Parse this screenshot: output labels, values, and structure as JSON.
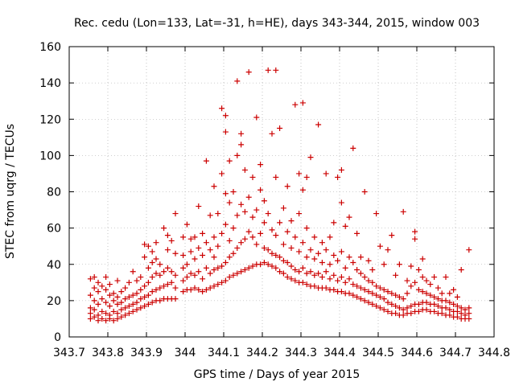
{
  "chart_data": {
    "type": "scatter",
    "title": "Rec. cedu (Lon=133, Lat=-31, h=HE), days 343-344, 2015, window 003",
    "xlabel": "GPS time / Days of year 2015",
    "ylabel": "STEC from uqrg / TECUs",
    "xlim": [
      343.7,
      344.8
    ],
    "ylim": [
      0,
      160
    ],
    "xticks": [
      343.7,
      343.8,
      343.9,
      344.0,
      344.1,
      344.2,
      344.3,
      344.4,
      344.5,
      344.6,
      344.7,
      344.8
    ],
    "xtick_labels": [
      "343.7",
      "343.8",
      "343.9",
      "344",
      "344.1",
      "344.2",
      "344.3",
      "344.4",
      "344.5",
      "344.6",
      "344.7",
      "344.8"
    ],
    "yticks": [
      0,
      20,
      40,
      60,
      80,
      100,
      120,
      140,
      160
    ],
    "ytick_labels": [
      "0",
      "20",
      "40",
      "60",
      "80",
      "100",
      "120",
      "140",
      "160"
    ],
    "grid": true,
    "legend": "none",
    "marker": "+",
    "color": "#cc0000",
    "x_range": [
      343.75,
      344.73
    ],
    "points": [
      [
        343.755,
        10
      ],
      [
        343.755,
        13
      ],
      [
        343.755,
        16
      ],
      [
        343.755,
        23
      ],
      [
        343.755,
        32
      ],
      [
        343.765,
        11
      ],
      [
        343.765,
        15
      ],
      [
        343.765,
        20
      ],
      [
        343.765,
        27
      ],
      [
        343.765,
        33
      ],
      [
        343.775,
        9
      ],
      [
        343.775,
        12
      ],
      [
        343.775,
        18
      ],
      [
        343.775,
        25
      ],
      [
        343.775,
        30
      ],
      [
        343.785,
        10
      ],
      [
        343.785,
        14
      ],
      [
        343.785,
        21
      ],
      [
        343.785,
        28
      ],
      [
        343.795,
        9
      ],
      [
        343.795,
        13
      ],
      [
        343.795,
        19
      ],
      [
        343.795,
        26
      ],
      [
        343.795,
        33
      ],
      [
        343.805,
        10
      ],
      [
        343.805,
        12
      ],
      [
        343.805,
        17
      ],
      [
        343.805,
        23
      ],
      [
        343.805,
        29
      ],
      [
        343.815,
        9
      ],
      [
        343.815,
        14
      ],
      [
        343.815,
        20
      ],
      [
        343.815,
        24
      ],
      [
        343.825,
        10
      ],
      [
        343.825,
        13
      ],
      [
        343.825,
        18
      ],
      [
        343.825,
        22
      ],
      [
        343.825,
        31
      ],
      [
        343.835,
        11
      ],
      [
        343.835,
        15
      ],
      [
        343.835,
        19
      ],
      [
        343.835,
        25
      ],
      [
        343.845,
        12
      ],
      [
        343.845,
        16
      ],
      [
        343.845,
        21
      ],
      [
        343.845,
        27
      ],
      [
        343.855,
        13
      ],
      [
        343.855,
        17
      ],
      [
        343.855,
        22
      ],
      [
        343.855,
        30
      ],
      [
        343.865,
        14
      ],
      [
        343.865,
        18
      ],
      [
        343.865,
        23
      ],
      [
        343.865,
        36
      ],
      [
        343.875,
        15
      ],
      [
        343.875,
        19
      ],
      [
        343.875,
        24
      ],
      [
        343.875,
        31
      ],
      [
        343.885,
        16
      ],
      [
        343.885,
        21
      ],
      [
        343.885,
        26
      ],
      [
        343.885,
        33
      ],
      [
        343.895,
        17
      ],
      [
        343.895,
        22
      ],
      [
        343.895,
        28
      ],
      [
        343.895,
        44
      ],
      [
        343.895,
        51
      ],
      [
        343.905,
        18
      ],
      [
        343.905,
        23
      ],
      [
        343.905,
        30
      ],
      [
        343.905,
        38
      ],
      [
        343.905,
        50
      ],
      [
        343.915,
        19
      ],
      [
        343.915,
        25
      ],
      [
        343.915,
        33
      ],
      [
        343.915,
        41
      ],
      [
        343.915,
        47
      ],
      [
        343.925,
        20
      ],
      [
        343.925,
        26
      ],
      [
        343.925,
        35
      ],
      [
        343.925,
        43
      ],
      [
        343.925,
        52
      ],
      [
        343.935,
        20
      ],
      [
        343.935,
        27
      ],
      [
        343.935,
        34
      ],
      [
        343.935,
        40
      ],
      [
        343.945,
        21
      ],
      [
        343.945,
        28
      ],
      [
        343.945,
        36
      ],
      [
        343.945,
        60
      ],
      [
        343.955,
        21
      ],
      [
        343.955,
        29
      ],
      [
        343.955,
        38
      ],
      [
        343.955,
        48
      ],
      [
        343.955,
        56
      ],
      [
        343.965,
        21
      ],
      [
        343.965,
        30
      ],
      [
        343.965,
        36
      ],
      [
        343.965,
        53
      ],
      [
        343.975,
        21
      ],
      [
        343.975,
        27
      ],
      [
        343.975,
        34
      ],
      [
        343.975,
        46
      ],
      [
        343.975,
        68
      ],
      [
        343.995,
        25
      ],
      [
        343.995,
        31
      ],
      [
        343.995,
        38
      ],
      [
        343.995,
        45
      ],
      [
        343.995,
        55
      ],
      [
        344.005,
        26
      ],
      [
        344.005,
        33
      ],
      [
        344.005,
        40
      ],
      [
        344.005,
        62
      ],
      [
        344.015,
        26
      ],
      [
        344.015,
        35
      ],
      [
        344.015,
        47
      ],
      [
        344.015,
        54
      ],
      [
        344.025,
        27
      ],
      [
        344.025,
        34
      ],
      [
        344.025,
        43
      ],
      [
        344.025,
        55
      ],
      [
        344.035,
        26
      ],
      [
        344.035,
        36
      ],
      [
        344.035,
        49
      ],
      [
        344.035,
        72
      ],
      [
        344.045,
        25
      ],
      [
        344.045,
        32
      ],
      [
        344.045,
        45
      ],
      [
        344.045,
        57
      ],
      [
        344.055,
        26
      ],
      [
        344.055,
        38
      ],
      [
        344.055,
        52
      ],
      [
        344.055,
        97
      ],
      [
        344.065,
        27
      ],
      [
        344.065,
        35
      ],
      [
        344.065,
        48
      ],
      [
        344.065,
        67
      ],
      [
        344.075,
        28
      ],
      [
        344.075,
        37
      ],
      [
        344.075,
        44
      ],
      [
        344.075,
        55
      ],
      [
        344.075,
        83
      ],
      [
        344.085,
        29
      ],
      [
        344.085,
        38
      ],
      [
        344.085,
        50
      ],
      [
        344.085,
        68
      ],
      [
        344.095,
        30
      ],
      [
        344.095,
        39
      ],
      [
        344.095,
        57
      ],
      [
        344.095,
        90
      ],
      [
        344.095,
        126
      ],
      [
        344.105,
        31
      ],
      [
        344.105,
        41
      ],
      [
        344.105,
        62
      ],
      [
        344.105,
        79
      ],
      [
        344.105,
        113
      ],
      [
        344.105,
        122
      ],
      [
        344.115,
        33
      ],
      [
        344.115,
        44
      ],
      [
        344.115,
        53
      ],
      [
        344.115,
        74
      ],
      [
        344.115,
        97
      ],
      [
        344.125,
        34
      ],
      [
        344.125,
        46
      ],
      [
        344.125,
        60
      ],
      [
        344.125,
        80
      ],
      [
        344.135,
        35
      ],
      [
        344.135,
        49
      ],
      [
        344.135,
        67
      ],
      [
        344.135,
        100
      ],
      [
        344.135,
        141
      ],
      [
        344.145,
        36
      ],
      [
        344.145,
        52
      ],
      [
        344.145,
        73
      ],
      [
        344.145,
        112
      ],
      [
        344.145,
        106
      ],
      [
        344.155,
        37
      ],
      [
        344.155,
        54
      ],
      [
        344.155,
        69
      ],
      [
        344.155,
        92
      ],
      [
        344.165,
        38
      ],
      [
        344.165,
        58
      ],
      [
        344.165,
        77
      ],
      [
        344.165,
        146
      ],
      [
        344.175,
        39
      ],
      [
        344.175,
        55
      ],
      [
        344.175,
        66
      ],
      [
        344.175,
        88
      ],
      [
        344.185,
        40
      ],
      [
        344.185,
        51
      ],
      [
        344.185,
        70
      ],
      [
        344.185,
        121
      ],
      [
        344.195,
        40
      ],
      [
        344.195,
        57
      ],
      [
        344.195,
        81
      ],
      [
        344.195,
        95
      ],
      [
        344.205,
        41
      ],
      [
        344.205,
        49
      ],
      [
        344.205,
        63
      ],
      [
        344.205,
        75
      ],
      [
        344.215,
        40
      ],
      [
        344.215,
        48
      ],
      [
        344.215,
        68
      ],
      [
        344.215,
        147
      ],
      [
        344.225,
        39
      ],
      [
        344.225,
        46
      ],
      [
        344.225,
        59
      ],
      [
        344.225,
        112
      ],
      [
        344.235,
        38
      ],
      [
        344.235,
        45
      ],
      [
        344.235,
        56
      ],
      [
        344.235,
        88
      ],
      [
        344.235,
        147
      ],
      [
        344.245,
        36
      ],
      [
        344.245,
        44
      ],
      [
        344.245,
        63
      ],
      [
        344.245,
        115
      ],
      [
        344.255,
        35
      ],
      [
        344.255,
        42
      ],
      [
        344.255,
        51
      ],
      [
        344.255,
        71
      ],
      [
        344.265,
        33
      ],
      [
        344.265,
        41
      ],
      [
        344.265,
        58
      ],
      [
        344.265,
        83
      ],
      [
        344.275,
        32
      ],
      [
        344.275,
        39
      ],
      [
        344.275,
        49
      ],
      [
        344.275,
        64
      ],
      [
        344.285,
        31
      ],
      [
        344.285,
        37
      ],
      [
        344.285,
        55
      ],
      [
        344.285,
        128
      ],
      [
        344.295,
        30
      ],
      [
        344.295,
        36
      ],
      [
        344.295,
        47
      ],
      [
        344.295,
        68
      ],
      [
        344.295,
        90
      ],
      [
        344.305,
        30
      ],
      [
        344.305,
        38
      ],
      [
        344.305,
        52
      ],
      [
        344.305,
        81
      ],
      [
        344.305,
        129
      ],
      [
        344.315,
        29
      ],
      [
        344.315,
        35
      ],
      [
        344.315,
        44
      ],
      [
        344.315,
        60
      ],
      [
        344.315,
        88
      ],
      [
        344.325,
        28
      ],
      [
        344.325,
        36
      ],
      [
        344.325,
        48
      ],
      [
        344.325,
        99
      ],
      [
        344.335,
        28
      ],
      [
        344.335,
        34
      ],
      [
        344.335,
        43
      ],
      [
        344.335,
        55
      ],
      [
        344.345,
        27
      ],
      [
        344.345,
        35
      ],
      [
        344.345,
        46
      ],
      [
        344.345,
        117
      ],
      [
        344.355,
        27
      ],
      [
        344.355,
        33
      ],
      [
        344.355,
        41
      ],
      [
        344.355,
        52
      ],
      [
        344.365,
        27
      ],
      [
        344.365,
        36
      ],
      [
        344.365,
        48
      ],
      [
        344.365,
        90
      ],
      [
        344.375,
        26
      ],
      [
        344.375,
        32
      ],
      [
        344.375,
        40
      ],
      [
        344.375,
        55
      ],
      [
        344.385,
        26
      ],
      [
        344.385,
        34
      ],
      [
        344.385,
        45
      ],
      [
        344.385,
        63
      ],
      [
        344.395,
        25
      ],
      [
        344.395,
        31
      ],
      [
        344.395,
        42
      ],
      [
        344.395,
        88
      ],
      [
        344.405,
        25
      ],
      [
        344.405,
        33
      ],
      [
        344.405,
        47
      ],
      [
        344.405,
        74
      ],
      [
        344.405,
        92
      ],
      [
        344.415,
        24
      ],
      [
        344.415,
        30
      ],
      [
        344.415,
        38
      ],
      [
        344.415,
        61
      ],
      [
        344.425,
        24
      ],
      [
        344.425,
        32
      ],
      [
        344.425,
        44
      ],
      [
        344.425,
        66
      ],
      [
        344.435,
        23
      ],
      [
        344.435,
        29
      ],
      [
        344.435,
        41
      ],
      [
        344.435,
        104
      ],
      [
        344.445,
        22
      ],
      [
        344.445,
        28
      ],
      [
        344.445,
        37
      ],
      [
        344.445,
        57
      ],
      [
        344.455,
        21
      ],
      [
        344.455,
        27
      ],
      [
        344.455,
        35
      ],
      [
        344.455,
        44
      ],
      [
        344.465,
        20
      ],
      [
        344.465,
        26
      ],
      [
        344.465,
        33
      ],
      [
        344.465,
        80
      ],
      [
        344.475,
        19
      ],
      [
        344.475,
        25
      ],
      [
        344.475,
        31
      ],
      [
        344.475,
        42
      ],
      [
        344.485,
        18
      ],
      [
        344.485,
        24
      ],
      [
        344.485,
        30
      ],
      [
        344.485,
        37
      ],
      [
        344.495,
        17
      ],
      [
        344.495,
        23
      ],
      [
        344.495,
        28
      ],
      [
        344.495,
        68
      ],
      [
        344.505,
        16
      ],
      [
        344.505,
        22
      ],
      [
        344.505,
        27
      ],
      [
        344.505,
        50
      ],
      [
        344.515,
        15
      ],
      [
        344.515,
        21
      ],
      [
        344.515,
        26
      ],
      [
        344.515,
        40
      ],
      [
        344.525,
        14
      ],
      [
        344.525,
        19
      ],
      [
        344.525,
        25
      ],
      [
        344.525,
        48
      ],
      [
        344.535,
        13
      ],
      [
        344.535,
        18
      ],
      [
        344.535,
        24
      ],
      [
        344.535,
        56
      ],
      [
        344.545,
        13
      ],
      [
        344.545,
        17
      ],
      [
        344.545,
        23
      ],
      [
        344.545,
        34
      ],
      [
        344.555,
        12
      ],
      [
        344.555,
        16
      ],
      [
        344.555,
        22
      ],
      [
        344.555,
        40
      ],
      [
        344.565,
        12
      ],
      [
        344.565,
        15
      ],
      [
        344.565,
        21
      ],
      [
        344.565,
        69
      ],
      [
        344.575,
        13
      ],
      [
        344.575,
        16
      ],
      [
        344.575,
        24
      ],
      [
        344.575,
        31
      ],
      [
        344.585,
        13
      ],
      [
        344.585,
        17
      ],
      [
        344.585,
        28
      ],
      [
        344.585,
        39
      ],
      [
        344.595,
        14
      ],
      [
        344.595,
        18
      ],
      [
        344.595,
        30
      ],
      [
        344.595,
        54
      ],
      [
        344.595,
        58
      ],
      [
        344.605,
        14
      ],
      [
        344.605,
        18
      ],
      [
        344.605,
        26
      ],
      [
        344.605,
        37
      ],
      [
        344.615,
        15
      ],
      [
        344.615,
        19
      ],
      [
        344.615,
        25
      ],
      [
        344.615,
        33
      ],
      [
        344.615,
        43
      ],
      [
        344.625,
        15
      ],
      [
        344.625,
        19
      ],
      [
        344.625,
        24
      ],
      [
        344.625,
        31
      ],
      [
        344.635,
        14
      ],
      [
        344.635,
        18
      ],
      [
        344.635,
        23
      ],
      [
        344.635,
        29
      ],
      [
        344.645,
        14
      ],
      [
        344.645,
        18
      ],
      [
        344.645,
        22
      ],
      [
        344.645,
        33
      ],
      [
        344.655,
        13
      ],
      [
        344.655,
        17
      ],
      [
        344.655,
        21
      ],
      [
        344.655,
        27
      ],
      [
        344.665,
        13
      ],
      [
        344.665,
        16
      ],
      [
        344.665,
        20
      ],
      [
        344.665,
        24
      ],
      [
        344.675,
        12
      ],
      [
        344.675,
        16
      ],
      [
        344.675,
        20
      ],
      [
        344.675,
        33
      ],
      [
        344.685,
        12
      ],
      [
        344.685,
        15
      ],
      [
        344.685,
        19
      ],
      [
        344.685,
        24
      ],
      [
        344.695,
        11
      ],
      [
        344.695,
        14
      ],
      [
        344.695,
        18
      ],
      [
        344.695,
        26
      ],
      [
        344.705,
        11
      ],
      [
        344.705,
        14
      ],
      [
        344.705,
        17
      ],
      [
        344.705,
        22
      ],
      [
        344.715,
        10
      ],
      [
        344.715,
        13
      ],
      [
        344.715,
        16
      ],
      [
        344.715,
        37
      ],
      [
        344.725,
        10
      ],
      [
        344.725,
        12
      ],
      [
        344.725,
        15
      ],
      [
        344.735,
        10
      ],
      [
        344.735,
        13
      ],
      [
        344.735,
        16
      ],
      [
        344.735,
        48
      ]
    ]
  }
}
